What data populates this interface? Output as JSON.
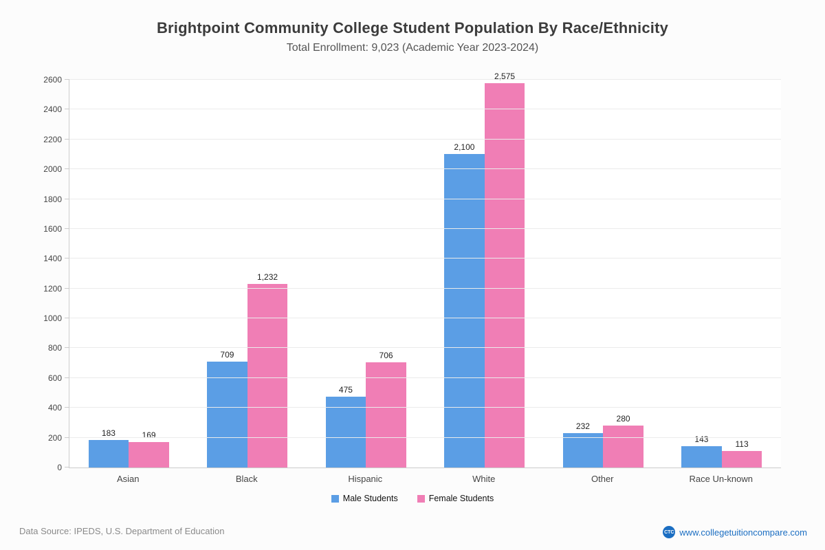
{
  "chart_data": {
    "type": "bar",
    "title": "Brightpoint Community College Student Population By Race/Ethnicity",
    "subtitle": "Total Enrollment: 9,023 (Academic Year 2023-2024)",
    "categories": [
      "Asian",
      "Black",
      "Hispanic",
      "White",
      "Other",
      "Race Un-known"
    ],
    "series": [
      {
        "name": "Male Students",
        "color": "#5b9ee5",
        "values": [
          183,
          709,
          475,
          2100,
          232,
          143
        ]
      },
      {
        "name": "Female Students",
        "color": "#f07eb5",
        "values": [
          169,
          1232,
          706,
          2575,
          280,
          113
        ]
      }
    ],
    "ylim": [
      0,
      2600
    ],
    "ytick_step": 200,
    "grid": true,
    "legend_position": "bottom",
    "xlabel": "",
    "ylabel": ""
  },
  "footer": {
    "data_source": "Data Source: IPEDS, U.S. Department of Education",
    "website": "www.collegetuitioncompare.com",
    "logo_text": "CTC"
  }
}
